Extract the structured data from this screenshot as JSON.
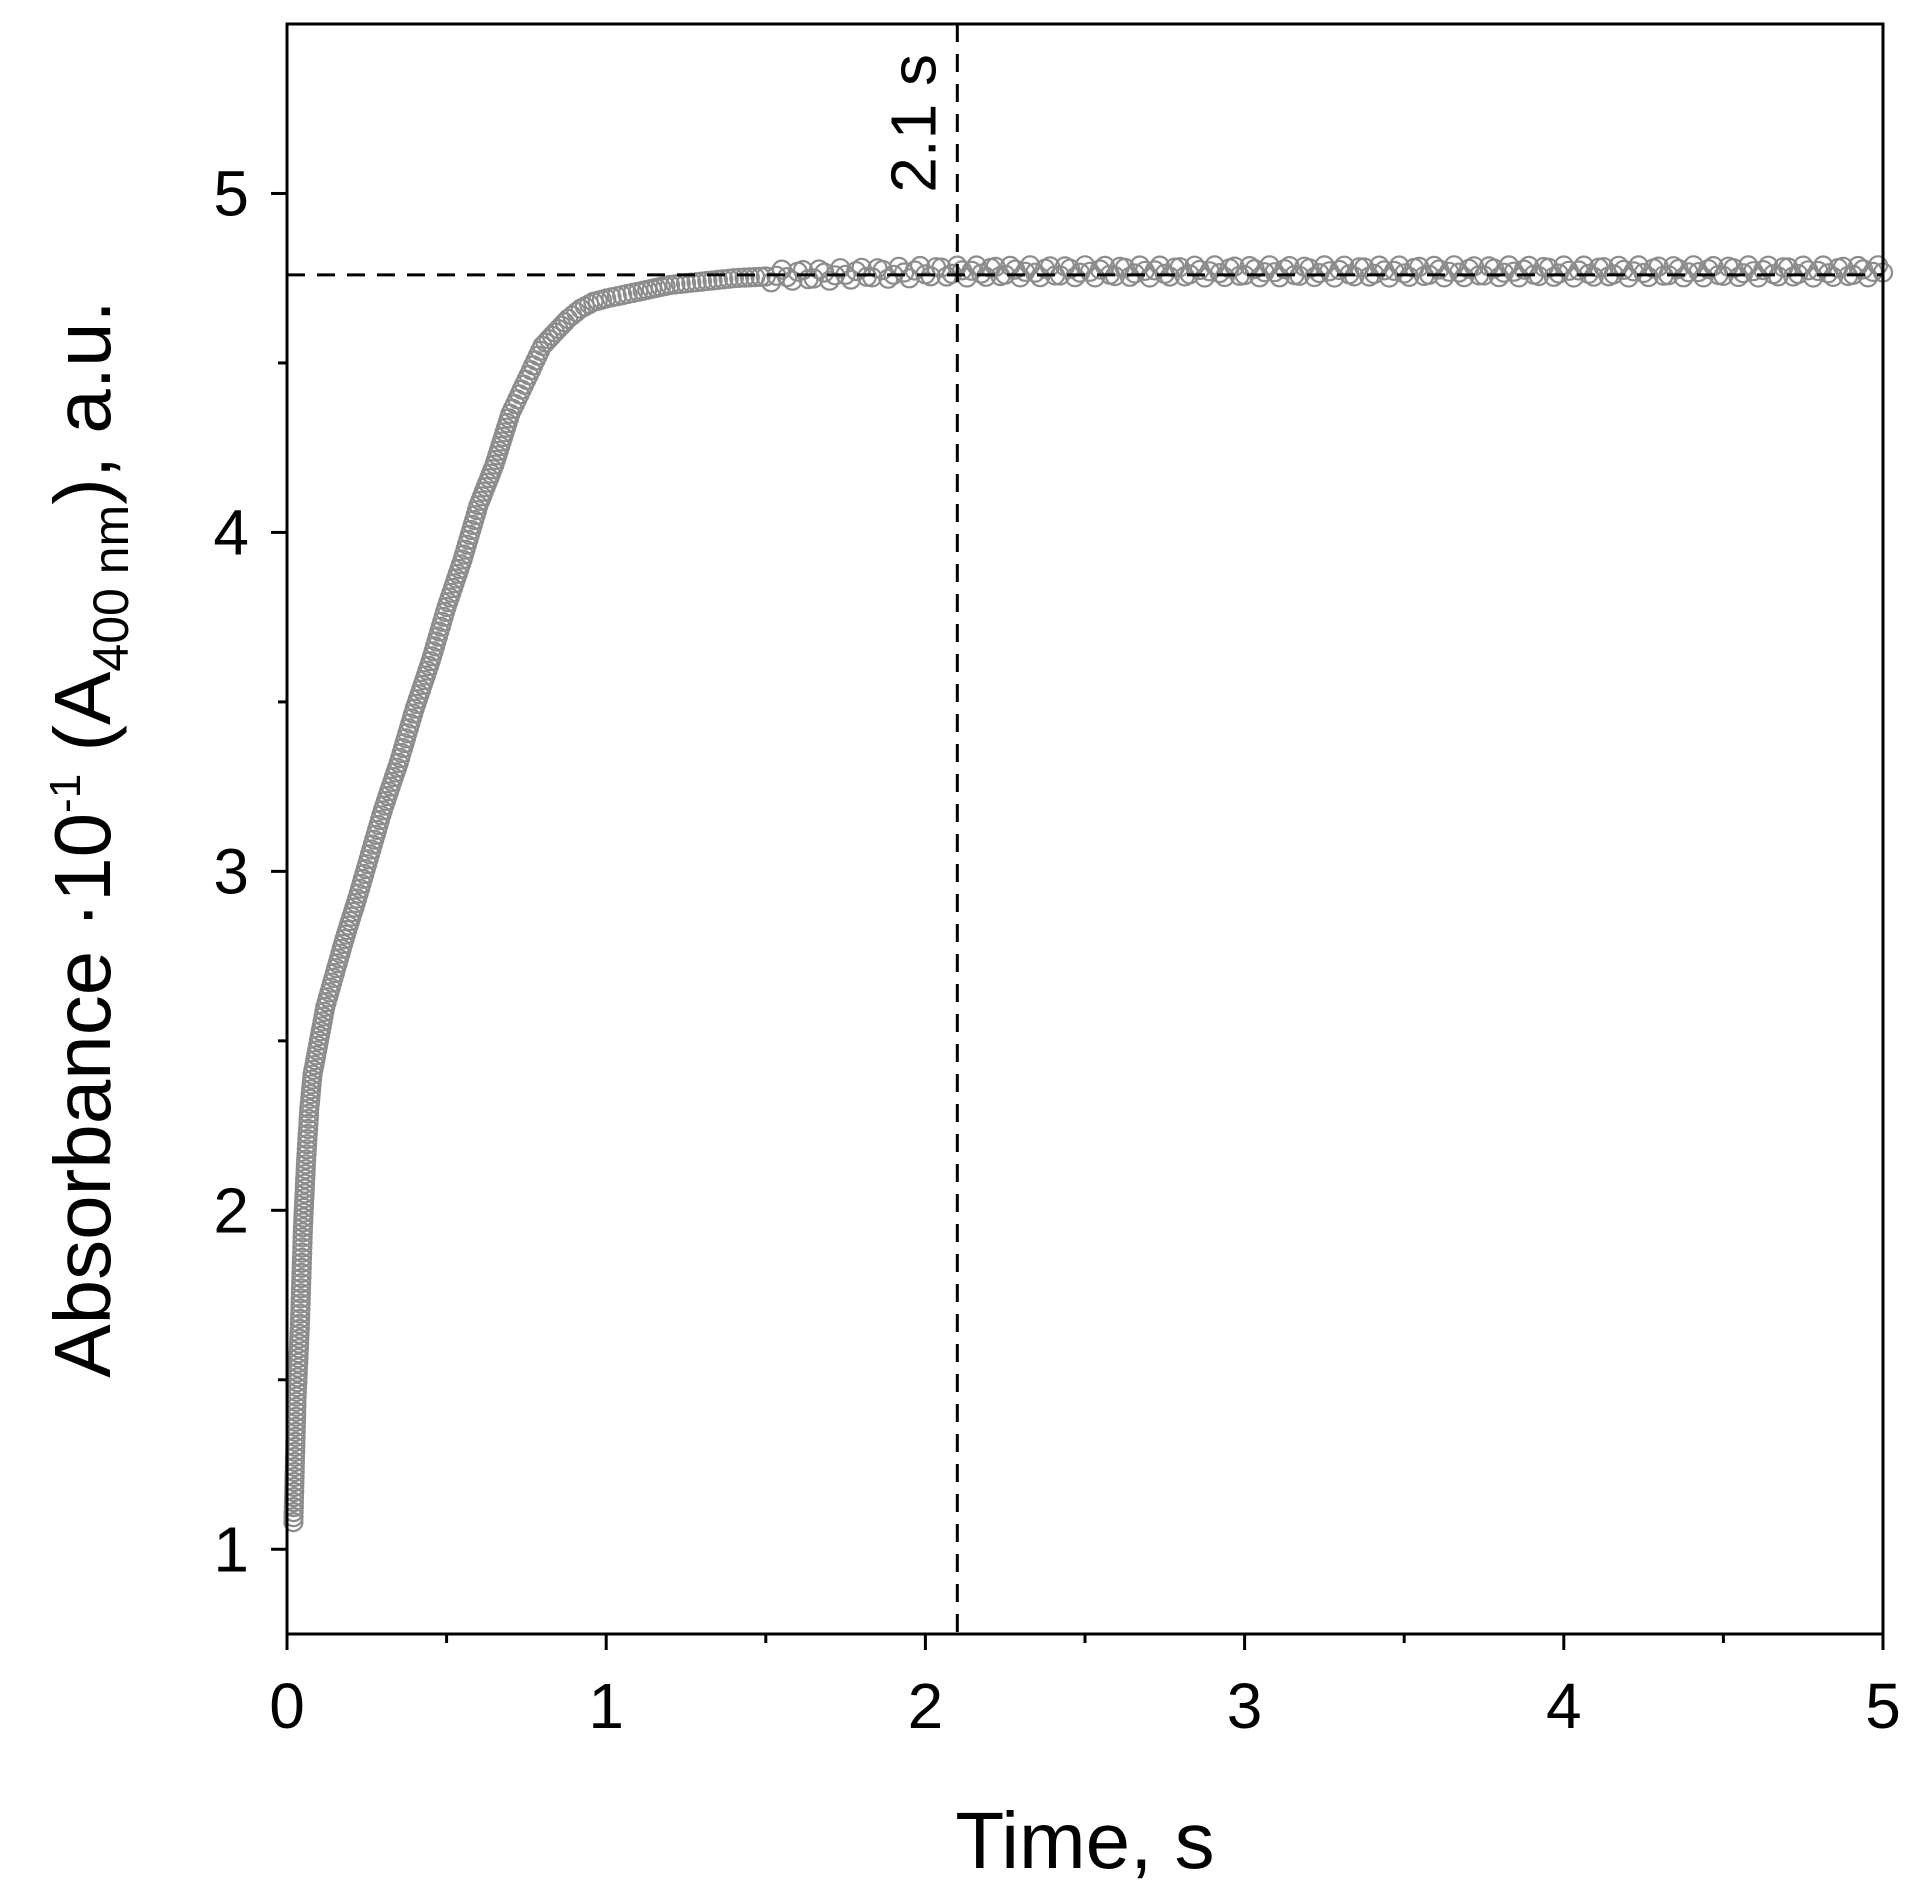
{
  "chart_data": {
    "type": "scatter",
    "xlabel": "Time, s",
    "ylabel": {
      "main": "Absorbance ·10",
      "exponent": "-1",
      "paren_open": " (A",
      "subscript": "400 nm",
      "paren_close": "), a.u."
    },
    "xlim": [
      0,
      5
    ],
    "ylim": [
      0.75,
      5.5
    ],
    "x_ticks": [
      "0",
      "1",
      "2",
      "3",
      "4",
      "5"
    ],
    "y_ticks": [
      "1",
      "2",
      "3",
      "4",
      "5"
    ],
    "grid": false,
    "legend": "none",
    "marker": "open-circle",
    "marker_color": "#8c8c8c",
    "reference_lines": [
      {
        "orientation": "vertical",
        "x": 2.1,
        "style": "dashed"
      },
      {
        "orientation": "horizontal",
        "y": 4.76,
        "style": "dashed"
      }
    ],
    "annotations": [
      {
        "text": "2.1 s",
        "x": 2.1,
        "y": 5.35,
        "rotation": -90
      }
    ],
    "series": [
      {
        "x": [
          0.02,
          0.03,
          0.04,
          0.05,
          0.06,
          0.07,
          0.08,
          0.1,
          0.12,
          0.15,
          0.18,
          0.22,
          0.26,
          0.3,
          0.35,
          0.4,
          0.45,
          0.5,
          0.55,
          0.6,
          0.65,
          0.7,
          0.75,
          0.8,
          0.85,
          0.88,
          0.92,
          0.96,
          1.0,
          1.05,
          1.1,
          1.2,
          1.3,
          1.4,
          1.5,
          1.6,
          1.7,
          1.8,
          1.9,
          2.0,
          2.1,
          2.25,
          2.5,
          2.75,
          3.0,
          3.25,
          3.5,
          3.75,
          4.0,
          4.25,
          4.5,
          4.75,
          5.0
        ],
        "y": [
          1.08,
          1.45,
          1.65,
          1.95,
          2.15,
          2.3,
          2.4,
          2.5,
          2.6,
          2.7,
          2.8,
          2.92,
          3.05,
          3.18,
          3.32,
          3.48,
          3.62,
          3.78,
          3.92,
          4.08,
          4.2,
          4.35,
          4.45,
          4.55,
          4.6,
          4.63,
          4.66,
          4.68,
          4.69,
          4.7,
          4.71,
          4.73,
          4.74,
          4.75,
          4.755,
          4.76,
          4.76,
          4.765,
          4.765,
          4.77,
          4.77,
          4.77,
          4.77,
          4.77,
          4.77,
          4.77,
          4.77,
          4.77,
          4.77,
          4.77,
          4.77,
          4.77,
          4.77
        ]
      }
    ]
  }
}
